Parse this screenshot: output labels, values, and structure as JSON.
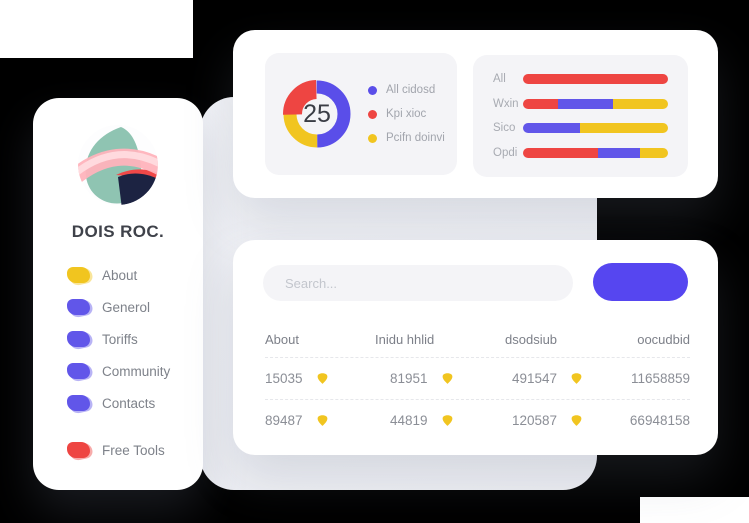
{
  "colors": {
    "red": "#EE4542",
    "yellow": "#F1C520",
    "indigo": "#6156E9",
    "donut_blue": "#5A4EE9",
    "button_indigo": "#5646F0",
    "panel_bg": "#F4F4F7",
    "card_bg": "#FFFFFF",
    "canvas_bg": "#F0F1F5"
  },
  "brand": {
    "name": "DOIS ROC."
  },
  "sidebar": {
    "items": [
      {
        "label": "About",
        "color": "#F1C520",
        "spaced": false
      },
      {
        "label": "Generol",
        "color": "#6156E9",
        "spaced": false
      },
      {
        "label": "Toriffs",
        "color": "#6156E9",
        "spaced": false
      },
      {
        "label": "Community",
        "color": "#6156E9",
        "spaced": false
      },
      {
        "label": "Contacts",
        "color": "#6156E9",
        "spaced": false
      },
      {
        "label": "Free Tools",
        "color": "#EE4542",
        "spaced": true
      }
    ]
  },
  "donut_card": {
    "center_value": "25",
    "legend": [
      {
        "label": "All cidosd",
        "color": "#5A4EE9",
        "value": 50,
        "thick": false
      },
      {
        "label": "Kpi xioc",
        "color": "#EE4542",
        "value": 25,
        "thick": true
      },
      {
        "label": "Pcifn doinvi",
        "color": "#F1C520",
        "value": 25,
        "thick": false
      }
    ],
    "arc_order": [
      0,
      2,
      1
    ]
  },
  "bars_card": {
    "rows": [
      {
        "label": "All",
        "segments": [
          {
            "color": "#EE4542",
            "pct": 100
          }
        ]
      },
      {
        "label": "Wxin",
        "segments": [
          {
            "color": "#EE4542",
            "pct": 24
          },
          {
            "color": "#6156E9",
            "pct": 38
          },
          {
            "color": "#F1C520",
            "pct": 38
          }
        ]
      },
      {
        "label": "Sico",
        "segments": [
          {
            "color": "#6156E9",
            "pct": 39
          },
          {
            "color": "#F1C520",
            "pct": 61
          }
        ]
      },
      {
        "label": "Opdi",
        "segments": [
          {
            "color": "#EE4542",
            "pct": 52
          },
          {
            "color": "#6156E9",
            "pct": 29
          },
          {
            "color": "#F1C520",
            "pct": 19
          }
        ]
      }
    ]
  },
  "table_card": {
    "search_placeholder": "Search...",
    "headers": [
      "About",
      "Inidu hhlid",
      "dsodsiub",
      "oocudbid"
    ],
    "rows": [
      [
        "15035",
        "81951",
        "491547",
        "11658859"
      ],
      [
        "89487",
        "44819",
        "120587",
        "66948158"
      ]
    ],
    "icon_color": "#F1C520"
  },
  "chart_data": [
    {
      "type": "pie",
      "subtype": "donut",
      "labels": [
        "All cidosd",
        "Kpi xioc",
        "Pcifn doinvi"
      ],
      "values": [
        50,
        25,
        25
      ],
      "colors": [
        "#5A4EE9",
        "#EE4542",
        "#F1C520"
      ],
      "center_label": "25",
      "legend_position": "right"
    },
    {
      "type": "bar",
      "subtype": "stacked-horizontal",
      "categories": [
        "All",
        "Wxin",
        "Sico",
        "Opdi"
      ],
      "series": [
        {
          "name": "red",
          "values": [
            100,
            24,
            0,
            52
          ]
        },
        {
          "name": "indigo",
          "values": [
            0,
            38,
            39,
            29
          ]
        },
        {
          "name": "yellow",
          "values": [
            0,
            38,
            61,
            19
          ]
        }
      ],
      "xlim": [
        0,
        100
      ],
      "grid": false
    }
  ]
}
